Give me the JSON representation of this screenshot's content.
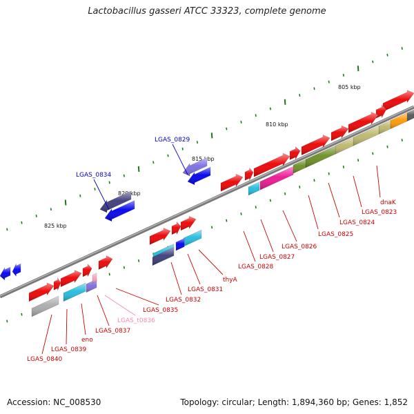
{
  "title": "Lactobacillus gasseri ATCC 33323, complete genome",
  "accession_text": "Accession: NC_008530",
  "summary_text": "Topology: circular; Length: 1,894,360 bp; Genes: 1,852",
  "ruler_labels": [
    "805 kbp",
    "810 kbp",
    "815 kbp",
    "820 kbp",
    "825 kbp"
  ],
  "top_labels": [
    {
      "text": "LGAS_0829",
      "color": "#0000cc"
    },
    {
      "text": "LGAS_0834",
      "color": "#0000cc"
    }
  ],
  "bottom_labels": [
    {
      "text": "dnaK",
      "color": "#cc0000"
    },
    {
      "text": "LGAS_0823",
      "color": "#cc0000"
    },
    {
      "text": "LGAS_0824",
      "color": "#cc0000"
    },
    {
      "text": "LGAS_0825",
      "color": "#cc0000"
    },
    {
      "text": "LGAS_0826",
      "color": "#cc0000"
    },
    {
      "text": "LGAS_0827",
      "color": "#cc0000"
    },
    {
      "text": "LGAS_0828",
      "color": "#cc0000"
    },
    {
      "text": "thyA",
      "color": "#cc0000"
    },
    {
      "text": "LGAS_0831",
      "color": "#cc0000"
    },
    {
      "text": "LGAS_0832",
      "color": "#cc0000"
    },
    {
      "text": "LGAS_0835",
      "color": "#cc0000"
    },
    {
      "text": "LGAS_t0836",
      "color": "#f08cb4"
    },
    {
      "text": "LGAS_0837",
      "color": "#cc0000"
    },
    {
      "text": "eno",
      "color": "#cc0000"
    },
    {
      "text": "LGAS_0839",
      "color": "#cc0000"
    },
    {
      "text": "LGAS_0840",
      "color": "#cc0000"
    }
  ],
  "colors": {
    "backbone": "#8a8a8a",
    "tick": "#1a7a1a",
    "cds_red": "#ee0000",
    "cds_blue": "#0000ee",
    "cds_navy": "#3b3b7a",
    "cds_violet": "#7b6ee0",
    "cds_magenta": "#ee1493",
    "cds_olive": "#6b8e23",
    "cds_khaki": "#bdb76b",
    "cds_orange": "#ff9900",
    "cds_cyan": "#22bbdd",
    "cds_gray": "#aaaaaa",
    "cds_darkgray": "#555555",
    "trna_pink": "#f4a0c0"
  }
}
